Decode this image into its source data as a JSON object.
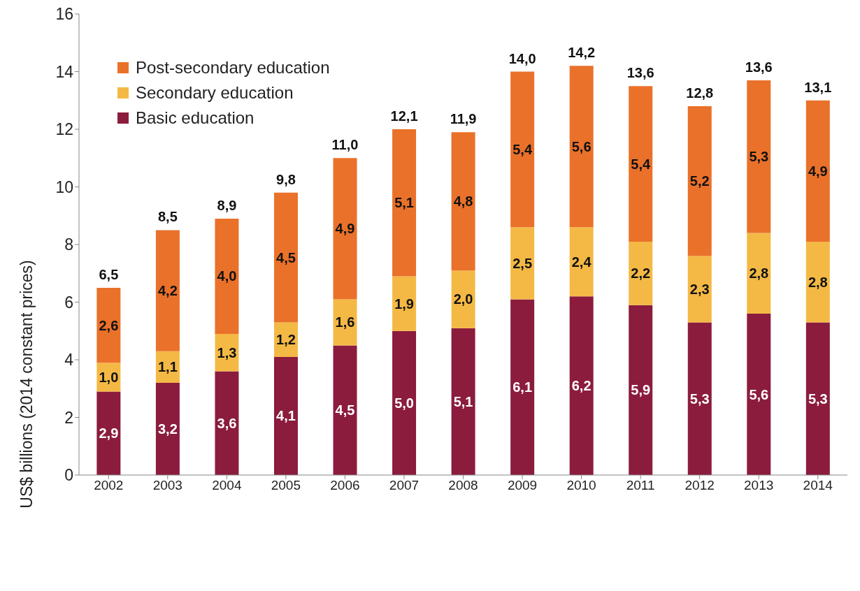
{
  "chart_data": {
    "type": "bar",
    "ylabel": "US$ billions (2014 constant prices)",
    "categories": [
      "2002",
      "2003",
      "2004",
      "2005",
      "2006",
      "2007",
      "2008",
      "2009",
      "2010",
      "2011",
      "2012",
      "2013",
      "2014"
    ],
    "stacked": true,
    "ylim": [
      0,
      16
    ],
    "yticks": [
      0,
      2,
      4,
      6,
      8,
      10,
      12,
      14,
      16
    ],
    "grid": false,
    "legend": "top left",
    "series": [
      {
        "name": "Basic education",
        "color": "#8b1c3d",
        "values": [
          2.9,
          3.2,
          3.6,
          4.1,
          4.5,
          5.0,
          5.1,
          6.1,
          6.2,
          5.9,
          5.3,
          5.6,
          5.3
        ],
        "value_labels": [
          "2,9",
          "3,2",
          "3,6",
          "4,1",
          "4,5",
          "5,0",
          "5,1",
          "6,1",
          "6,2",
          "5,9",
          "5,3",
          "5,6",
          "5,3"
        ]
      },
      {
        "name": "Secondary education",
        "color": "#f4b945",
        "values": [
          1.0,
          1.1,
          1.3,
          1.2,
          1.6,
          1.9,
          2.0,
          2.5,
          2.4,
          2.2,
          2.3,
          2.8,
          2.8
        ],
        "value_labels": [
          "1,0",
          "1,1",
          "1,3",
          "1,2",
          "1,6",
          "1,9",
          "2,0",
          "2,5",
          "2,4",
          "2,2",
          "2,3",
          "2,8",
          "2,8"
        ]
      },
      {
        "name": "Post-secondary education",
        "color": "#ea712a",
        "values": [
          2.6,
          4.2,
          4.0,
          4.5,
          4.9,
          5.1,
          4.8,
          5.4,
          5.6,
          5.4,
          5.2,
          5.3,
          4.9
        ],
        "value_labels": [
          "2,6",
          "4,2",
          "4,0",
          "4,5",
          "4,9",
          "5,1",
          "4,8",
          "5,4",
          "5,6",
          "5,4",
          "5,2",
          "5,3",
          "4,9"
        ]
      }
    ],
    "totals": [
      "6,5",
      "8,5",
      "8,9",
      "9,8",
      "11,0",
      "12,1",
      "11,9",
      "14,0",
      "14,2",
      "13,6",
      "12,8",
      "13,6",
      "13,1"
    ]
  }
}
